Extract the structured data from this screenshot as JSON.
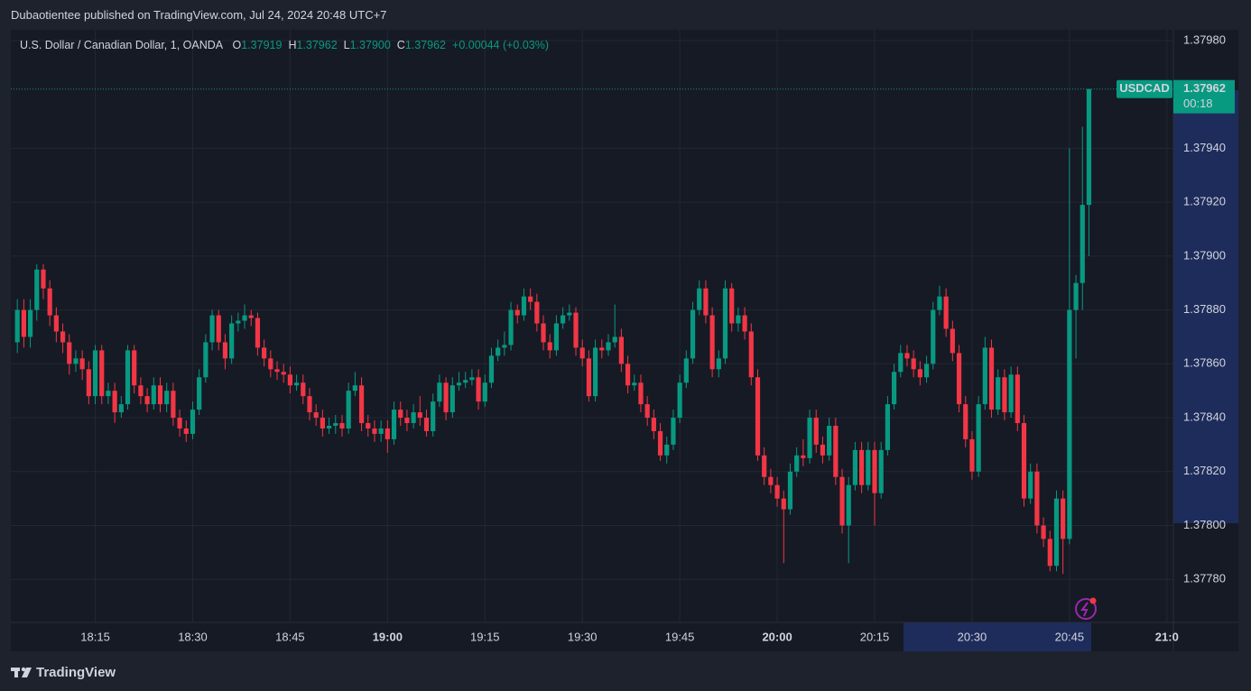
{
  "header": {
    "published": "Dubaotientee published on TradingView.com, Jul 24, 2024 20:48 UTC+7"
  },
  "footer": {
    "brand": "TradingView"
  },
  "chart_data": {
    "type": "candlestick",
    "symbol_info": "U.S. Dollar / Canadian Dollar, 1, OANDA",
    "ohlc_legend": [
      {
        "label": "O",
        "value": "1.37919"
      },
      {
        "label": "H",
        "value": "1.37962"
      },
      {
        "label": "L",
        "value": "1.37900"
      },
      {
        "label": "C",
        "value": "1.37962"
      }
    ],
    "change": "+0.00044 (+0.03%)",
    "price_tag": {
      "symbol": "USDCAD",
      "price": "1.37962",
      "countdown": "00:18"
    },
    "up_color": "#089981",
    "down_color": "#f23645",
    "grid": true,
    "x": [
      "18:03",
      "18:04",
      "18:05",
      "18:06",
      "18:07",
      "18:08",
      "18:09",
      "18:10",
      "18:11",
      "18:12",
      "18:13",
      "18:14",
      "18:15",
      "18:16",
      "18:17",
      "18:18",
      "18:19",
      "18:20",
      "18:21",
      "18:22",
      "18:23",
      "18:24",
      "18:25",
      "18:26",
      "18:27",
      "18:28",
      "18:29",
      "18:30",
      "18:31",
      "18:32",
      "18:33",
      "18:34",
      "18:35",
      "18:36",
      "18:37",
      "18:38",
      "18:39",
      "18:40",
      "18:41",
      "18:42",
      "18:43",
      "18:44",
      "18:45",
      "18:46",
      "18:47",
      "18:48",
      "18:49",
      "18:50",
      "18:51",
      "18:52",
      "18:53",
      "18:54",
      "18:55",
      "18:56",
      "18:57",
      "18:58",
      "18:59",
      "19:00",
      "19:01",
      "19:02",
      "19:03",
      "19:04",
      "19:05",
      "19:06",
      "19:07",
      "19:08",
      "19:09",
      "19:10",
      "19:11",
      "19:12",
      "19:13",
      "19:14",
      "19:15",
      "19:16",
      "19:17",
      "19:18",
      "19:19",
      "19:20",
      "19:21",
      "19:22",
      "19:23",
      "19:24",
      "19:25",
      "19:26",
      "19:27",
      "19:28",
      "19:29",
      "19:30",
      "19:31",
      "19:32",
      "19:33",
      "19:34",
      "19:35",
      "19:36",
      "19:37",
      "19:38",
      "19:39",
      "19:40",
      "19:41",
      "19:42",
      "19:43",
      "19:44",
      "19:45",
      "19:46",
      "19:47",
      "19:48",
      "19:49",
      "19:50",
      "19:51",
      "19:52",
      "19:53",
      "19:54",
      "19:55",
      "19:56",
      "19:57",
      "19:58",
      "19:59",
      "20:00",
      "20:01",
      "20:02",
      "20:03",
      "20:04",
      "20:05",
      "20:06",
      "20:07",
      "20:08",
      "20:09",
      "20:10",
      "20:11",
      "20:12",
      "20:13",
      "20:14",
      "20:15",
      "20:16",
      "20:17",
      "20:18",
      "20:19",
      "20:20",
      "20:21",
      "20:22",
      "20:23",
      "20:24",
      "20:25",
      "20:26",
      "20:27",
      "20:28",
      "20:29",
      "20:30",
      "20:31",
      "20:32",
      "20:33",
      "20:34",
      "20:35",
      "20:36",
      "20:37",
      "20:38",
      "20:39",
      "20:40",
      "20:41",
      "20:42",
      "20:43",
      "20:44",
      "20:45",
      "20:46",
      "20:47",
      "20:48"
    ],
    "xlim": [
      "18:02",
      "21:01"
    ],
    "xticks": [
      "18:15",
      "18:30",
      "18:45",
      "19:00",
      "19:15",
      "19:30",
      "19:45",
      "20:00",
      "20:15",
      "20:30",
      "20:45",
      {
        "value": "21:00",
        "label": "21:0"
      }
    ],
    "ylim": [
      1.37764,
      1.37984
    ],
    "yticks": [
      {
        "value": 1.3798,
        "label": "1.37980"
      },
      {
        "value": 1.3794,
        "label": "1.37940"
      },
      {
        "value": 1.3792,
        "label": "1.37920"
      },
      {
        "value": 1.379,
        "label": "1.37900"
      },
      {
        "value": 1.3788,
        "label": "1.37880"
      },
      {
        "value": 1.3786,
        "label": "1.37860"
      },
      {
        "value": 1.3784,
        "label": "1.37840"
      },
      {
        "value": 1.3782,
        "label": "1.37820"
      },
      {
        "value": 1.378,
        "label": "1.37800"
      },
      {
        "value": 1.3778,
        "label": "1.37780"
      }
    ],
    "series": [
      {
        "name": "USDCAD",
        "open": [
          1.37868,
          1.3788,
          1.3787,
          1.3788,
          1.37895,
          1.37888,
          1.37878,
          1.37872,
          1.37868,
          1.3786,
          1.37862,
          1.37858,
          1.37848,
          1.37865,
          1.37848,
          1.3785,
          1.37842,
          1.37845,
          1.37865,
          1.37852,
          1.37848,
          1.37845,
          1.37852,
          1.37845,
          1.3785,
          1.3784,
          1.37836,
          1.37834,
          1.37843,
          1.37855,
          1.37868,
          1.37878,
          1.37868,
          1.37862,
          1.37875,
          1.37876,
          1.37878,
          1.37877,
          1.37866,
          1.37862,
          1.37858,
          1.37857,
          1.37856,
          1.37852,
          1.37853,
          1.37848,
          1.37842,
          1.3784,
          1.37836,
          1.37837,
          1.37838,
          1.37836,
          1.3785,
          1.37852,
          1.37838,
          1.37836,
          1.37834,
          1.37836,
          1.37832,
          1.37843,
          1.3784,
          1.37838,
          1.37842,
          1.3784,
          1.37835,
          1.37846,
          1.37853,
          1.37842,
          1.37852,
          1.37853,
          1.37854,
          1.37855,
          1.37846,
          1.37853,
          1.37863,
          1.37866,
          1.37867,
          1.3788,
          1.37878,
          1.37885,
          1.37883,
          1.37875,
          1.37868,
          1.37865,
          1.37875,
          1.37878,
          1.37879,
          1.37866,
          1.37862,
          1.37848,
          1.37866,
          1.37865,
          1.37868,
          1.3787,
          1.3786,
          1.37852,
          1.37853,
          1.37845,
          1.3784,
          1.37835,
          1.37826,
          1.3783,
          1.3784,
          1.37853,
          1.37862,
          1.3788,
          1.37888,
          1.37878,
          1.37858,
          1.37862,
          1.37888,
          1.37875,
          1.37878,
          1.37872,
          1.37855,
          1.37826,
          1.37818,
          1.37815,
          1.3781,
          1.37806,
          1.3782,
          1.37826,
          1.37825,
          1.3784,
          1.3783,
          1.37826,
          1.37837,
          1.37818,
          1.378,
          1.37815,
          1.37828,
          1.37815,
          1.37828,
          1.37812,
          1.37828,
          1.37845,
          1.37857,
          1.37864,
          1.37862,
          1.37858,
          1.37855,
          1.3786,
          1.3788,
          1.37885,
          1.37873,
          1.37864,
          1.37845,
          1.37832,
          1.3782,
          1.37845,
          1.37866,
          1.37843,
          1.37855,
          1.37842,
          1.37856,
          1.37838,
          1.3781,
          1.3782,
          1.378,
          1.37795,
          1.37785,
          1.3781,
          1.37795,
          1.3788,
          1.3789,
          1.37919
        ],
        "high": [
          1.37884,
          1.37884,
          1.37884,
          1.37897,
          1.37897,
          1.37891,
          1.37881,
          1.37875,
          1.37871,
          1.37865,
          1.37865,
          1.37861,
          1.37867,
          1.37867,
          1.37853,
          1.37853,
          1.37848,
          1.37867,
          1.37867,
          1.37855,
          1.37851,
          1.37855,
          1.37855,
          1.37853,
          1.37853,
          1.37843,
          1.37839,
          1.37846,
          1.37858,
          1.37871,
          1.3788,
          1.3788,
          1.37871,
          1.37878,
          1.37879,
          1.37882,
          1.3788,
          1.37879,
          1.37869,
          1.37865,
          1.37861,
          1.3786,
          1.37859,
          1.37856,
          1.37856,
          1.37851,
          1.37845,
          1.37843,
          1.3784,
          1.37841,
          1.37841,
          1.37853,
          1.37857,
          1.37855,
          1.37841,
          1.37839,
          1.37839,
          1.37839,
          1.37846,
          1.37846,
          1.37843,
          1.37845,
          1.37848,
          1.37843,
          1.37849,
          1.37856,
          1.37855,
          1.37855,
          1.37857,
          1.37857,
          1.37858,
          1.37858,
          1.37856,
          1.37866,
          1.37869,
          1.37872,
          1.37883,
          1.37882,
          1.37888,
          1.37888,
          1.37886,
          1.37878,
          1.37871,
          1.37878,
          1.37881,
          1.37882,
          1.37881,
          1.37869,
          1.37865,
          1.37869,
          1.37869,
          1.37871,
          1.37882,
          1.37873,
          1.37863,
          1.37856,
          1.37856,
          1.37848,
          1.37843,
          1.37838,
          1.37833,
          1.37843,
          1.37856,
          1.37865,
          1.37883,
          1.37891,
          1.37891,
          1.37881,
          1.37865,
          1.37891,
          1.3789,
          1.37881,
          1.37881,
          1.37875,
          1.37858,
          1.37829,
          1.37821,
          1.37818,
          1.37813,
          1.37823,
          1.37829,
          1.37832,
          1.37843,
          1.37843,
          1.37833,
          1.3784,
          1.3784,
          1.37821,
          1.37818,
          1.37831,
          1.37831,
          1.37831,
          1.37831,
          1.37831,
          1.37848,
          1.3786,
          1.37867,
          1.37867,
          1.37865,
          1.37861,
          1.37863,
          1.37883,
          1.37889,
          1.37888,
          1.37876,
          1.37867,
          1.37848,
          1.37835,
          1.37848,
          1.3787,
          1.37869,
          1.37858,
          1.37858,
          1.37859,
          1.37859,
          1.37841,
          1.37823,
          1.37823,
          1.37803,
          1.37798,
          1.37813,
          1.37813,
          1.3794,
          1.37893,
          1.37948,
          1.37962
        ],
        "low": [
          1.37864,
          1.37866,
          1.37866,
          1.37876,
          1.37884,
          1.37874,
          1.37868,
          1.37864,
          1.37856,
          1.37857,
          1.37854,
          1.37845,
          1.37845,
          1.37845,
          1.37845,
          1.37838,
          1.3784,
          1.37843,
          1.37849,
          1.37845,
          1.37842,
          1.37843,
          1.37842,
          1.37842,
          1.37837,
          1.37833,
          1.37831,
          1.37832,
          1.37841,
          1.37853,
          1.37865,
          1.37865,
          1.37858,
          1.3786,
          1.37872,
          1.37873,
          1.37874,
          1.37863,
          1.37859,
          1.37855,
          1.37854,
          1.37853,
          1.37849,
          1.3785,
          1.37845,
          1.37839,
          1.37837,
          1.37833,
          1.37834,
          1.37834,
          1.37833,
          1.37834,
          1.37848,
          1.37835,
          1.37833,
          1.37831,
          1.37831,
          1.37827,
          1.3783,
          1.37837,
          1.37835,
          1.37836,
          1.37837,
          1.37833,
          1.37833,
          1.37844,
          1.37839,
          1.3784,
          1.3785,
          1.37851,
          1.37852,
          1.37843,
          1.37844,
          1.37851,
          1.37861,
          1.37863,
          1.37865,
          1.37875,
          1.37876,
          1.3788,
          1.37872,
          1.37865,
          1.37862,
          1.37863,
          1.37873,
          1.37876,
          1.37863,
          1.37859,
          1.37846,
          1.37846,
          1.37862,
          1.37863,
          1.37866,
          1.37857,
          1.37849,
          1.3785,
          1.37842,
          1.37837,
          1.37832,
          1.37824,
          1.37823,
          1.37828,
          1.37838,
          1.37851,
          1.3786,
          1.37878,
          1.37875,
          1.37855,
          1.37855,
          1.3786,
          1.37872,
          1.37872,
          1.37869,
          1.37852,
          1.37824,
          1.37815,
          1.37812,
          1.37807,
          1.37786,
          1.37804,
          1.37818,
          1.37822,
          1.37823,
          1.37827,
          1.37823,
          1.37824,
          1.37815,
          1.37797,
          1.37786,
          1.37813,
          1.37812,
          1.37813,
          1.378,
          1.3781,
          1.37826,
          1.37843,
          1.37855,
          1.37859,
          1.37855,
          1.37852,
          1.37853,
          1.37858,
          1.37878,
          1.3787,
          1.37861,
          1.37842,
          1.37829,
          1.37817,
          1.37818,
          1.37843,
          1.3784,
          1.37841,
          1.37839,
          1.3784,
          1.37835,
          1.37807,
          1.37808,
          1.37797,
          1.37792,
          1.37783,
          1.37783,
          1.37782,
          1.37793,
          1.37862,
          1.3788,
          1.379
        ],
        "close": [
          1.3788,
          1.3787,
          1.3788,
          1.37895,
          1.37888,
          1.37878,
          1.37872,
          1.37868,
          1.3786,
          1.37862,
          1.37858,
          1.37848,
          1.37865,
          1.37848,
          1.3785,
          1.37842,
          1.37845,
          1.37865,
          1.37852,
          1.37848,
          1.37845,
          1.37852,
          1.37845,
          1.3785,
          1.3784,
          1.37836,
          1.37834,
          1.37843,
          1.37855,
          1.37868,
          1.37878,
          1.37868,
          1.37862,
          1.37875,
          1.37876,
          1.37878,
          1.37877,
          1.37866,
          1.37862,
          1.37858,
          1.37857,
          1.37856,
          1.37852,
          1.37853,
          1.37848,
          1.37842,
          1.3784,
          1.37836,
          1.37837,
          1.37838,
          1.37836,
          1.3785,
          1.37852,
          1.37838,
          1.37836,
          1.37834,
          1.37836,
          1.37832,
          1.37843,
          1.3784,
          1.37838,
          1.37842,
          1.3784,
          1.37835,
          1.37846,
          1.37853,
          1.37842,
          1.37852,
          1.37853,
          1.37854,
          1.37855,
          1.37846,
          1.37853,
          1.37863,
          1.37866,
          1.37867,
          1.3788,
          1.37878,
          1.37885,
          1.37883,
          1.37875,
          1.37868,
          1.37865,
          1.37875,
          1.37878,
          1.37879,
          1.37866,
          1.37862,
          1.37848,
          1.37866,
          1.37865,
          1.37868,
          1.3787,
          1.3786,
          1.37852,
          1.37853,
          1.37845,
          1.3784,
          1.37835,
          1.37826,
          1.3783,
          1.3784,
          1.37853,
          1.37862,
          1.3788,
          1.37888,
          1.37878,
          1.37858,
          1.37862,
          1.37888,
          1.37875,
          1.37878,
          1.37872,
          1.37855,
          1.37826,
          1.37818,
          1.37815,
          1.3781,
          1.37806,
          1.3782,
          1.37826,
          1.37825,
          1.3784,
          1.3783,
          1.37826,
          1.37837,
          1.37818,
          1.378,
          1.37815,
          1.37828,
          1.37815,
          1.37828,
          1.37812,
          1.37828,
          1.37845,
          1.37857,
          1.37864,
          1.37862,
          1.37858,
          1.37855,
          1.3786,
          1.3788,
          1.37885,
          1.37873,
          1.37864,
          1.37845,
          1.37832,
          1.3782,
          1.37845,
          1.37866,
          1.37843,
          1.37855,
          1.37842,
          1.37856,
          1.37838,
          1.3781,
          1.3782,
          1.378,
          1.37795,
          1.37785,
          1.3781,
          1.37795,
          1.3788,
          1.3789,
          1.37919,
          1.37962
        ]
      }
    ]
  }
}
